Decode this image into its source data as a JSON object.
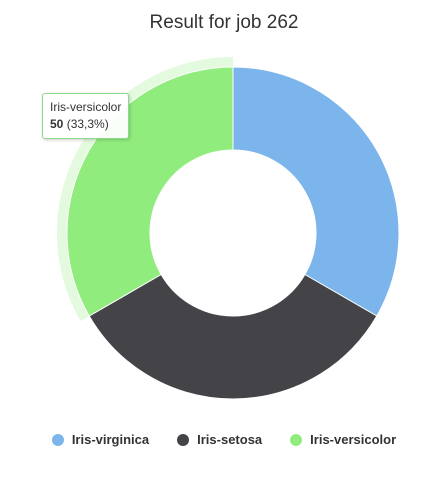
{
  "chart_data": {
    "type": "pie",
    "title": "Result for job 262",
    "categories": [
      "Iris-virginica",
      "Iris-setosa",
      "Iris-versicolor"
    ],
    "values": [
      50,
      50,
      50
    ],
    "colors": [
      "#7cb5ec",
      "#434348",
      "#90ed7d"
    ],
    "donut": true,
    "legend_position": "bottom",
    "highlighted_index": 2
  },
  "tooltip": {
    "series": "Iris-versicolor",
    "value": "50",
    "percent": "(33,3%)"
  }
}
